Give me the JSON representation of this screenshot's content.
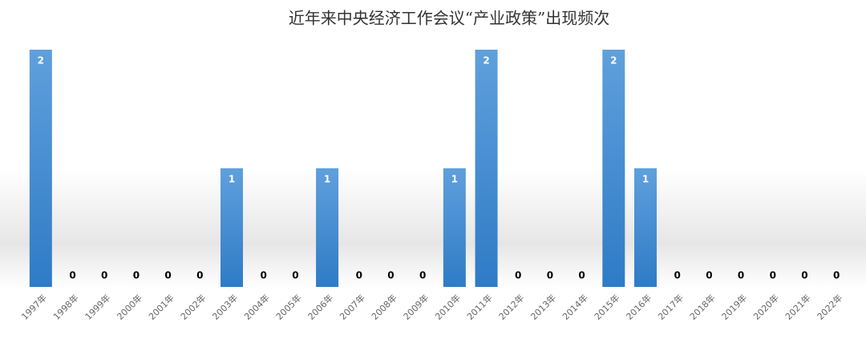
{
  "chart_data": {
    "type": "bar",
    "title": "近年来中央经济工作会议“产业政策”出现频次",
    "categories": [
      "1997年",
      "1998年",
      "1999年",
      "2000年",
      "2001年",
      "2002年",
      "2003年",
      "2004年",
      "2005年",
      "2006年",
      "2007年",
      "2008年",
      "2009年",
      "2010年",
      "2011年",
      "2012年",
      "2013年",
      "2014年",
      "2015年",
      "2016年",
      "2017年",
      "2018年",
      "2019年",
      "2020年",
      "2021年",
      "2022年"
    ],
    "values": [
      2,
      0,
      0,
      0,
      0,
      0,
      1,
      0,
      0,
      1,
      0,
      0,
      0,
      1,
      2,
      0,
      0,
      0,
      2,
      1,
      0,
      0,
      0,
      0,
      0,
      0
    ],
    "color": "#4a8fd4",
    "ylim": [
      0,
      2
    ]
  }
}
